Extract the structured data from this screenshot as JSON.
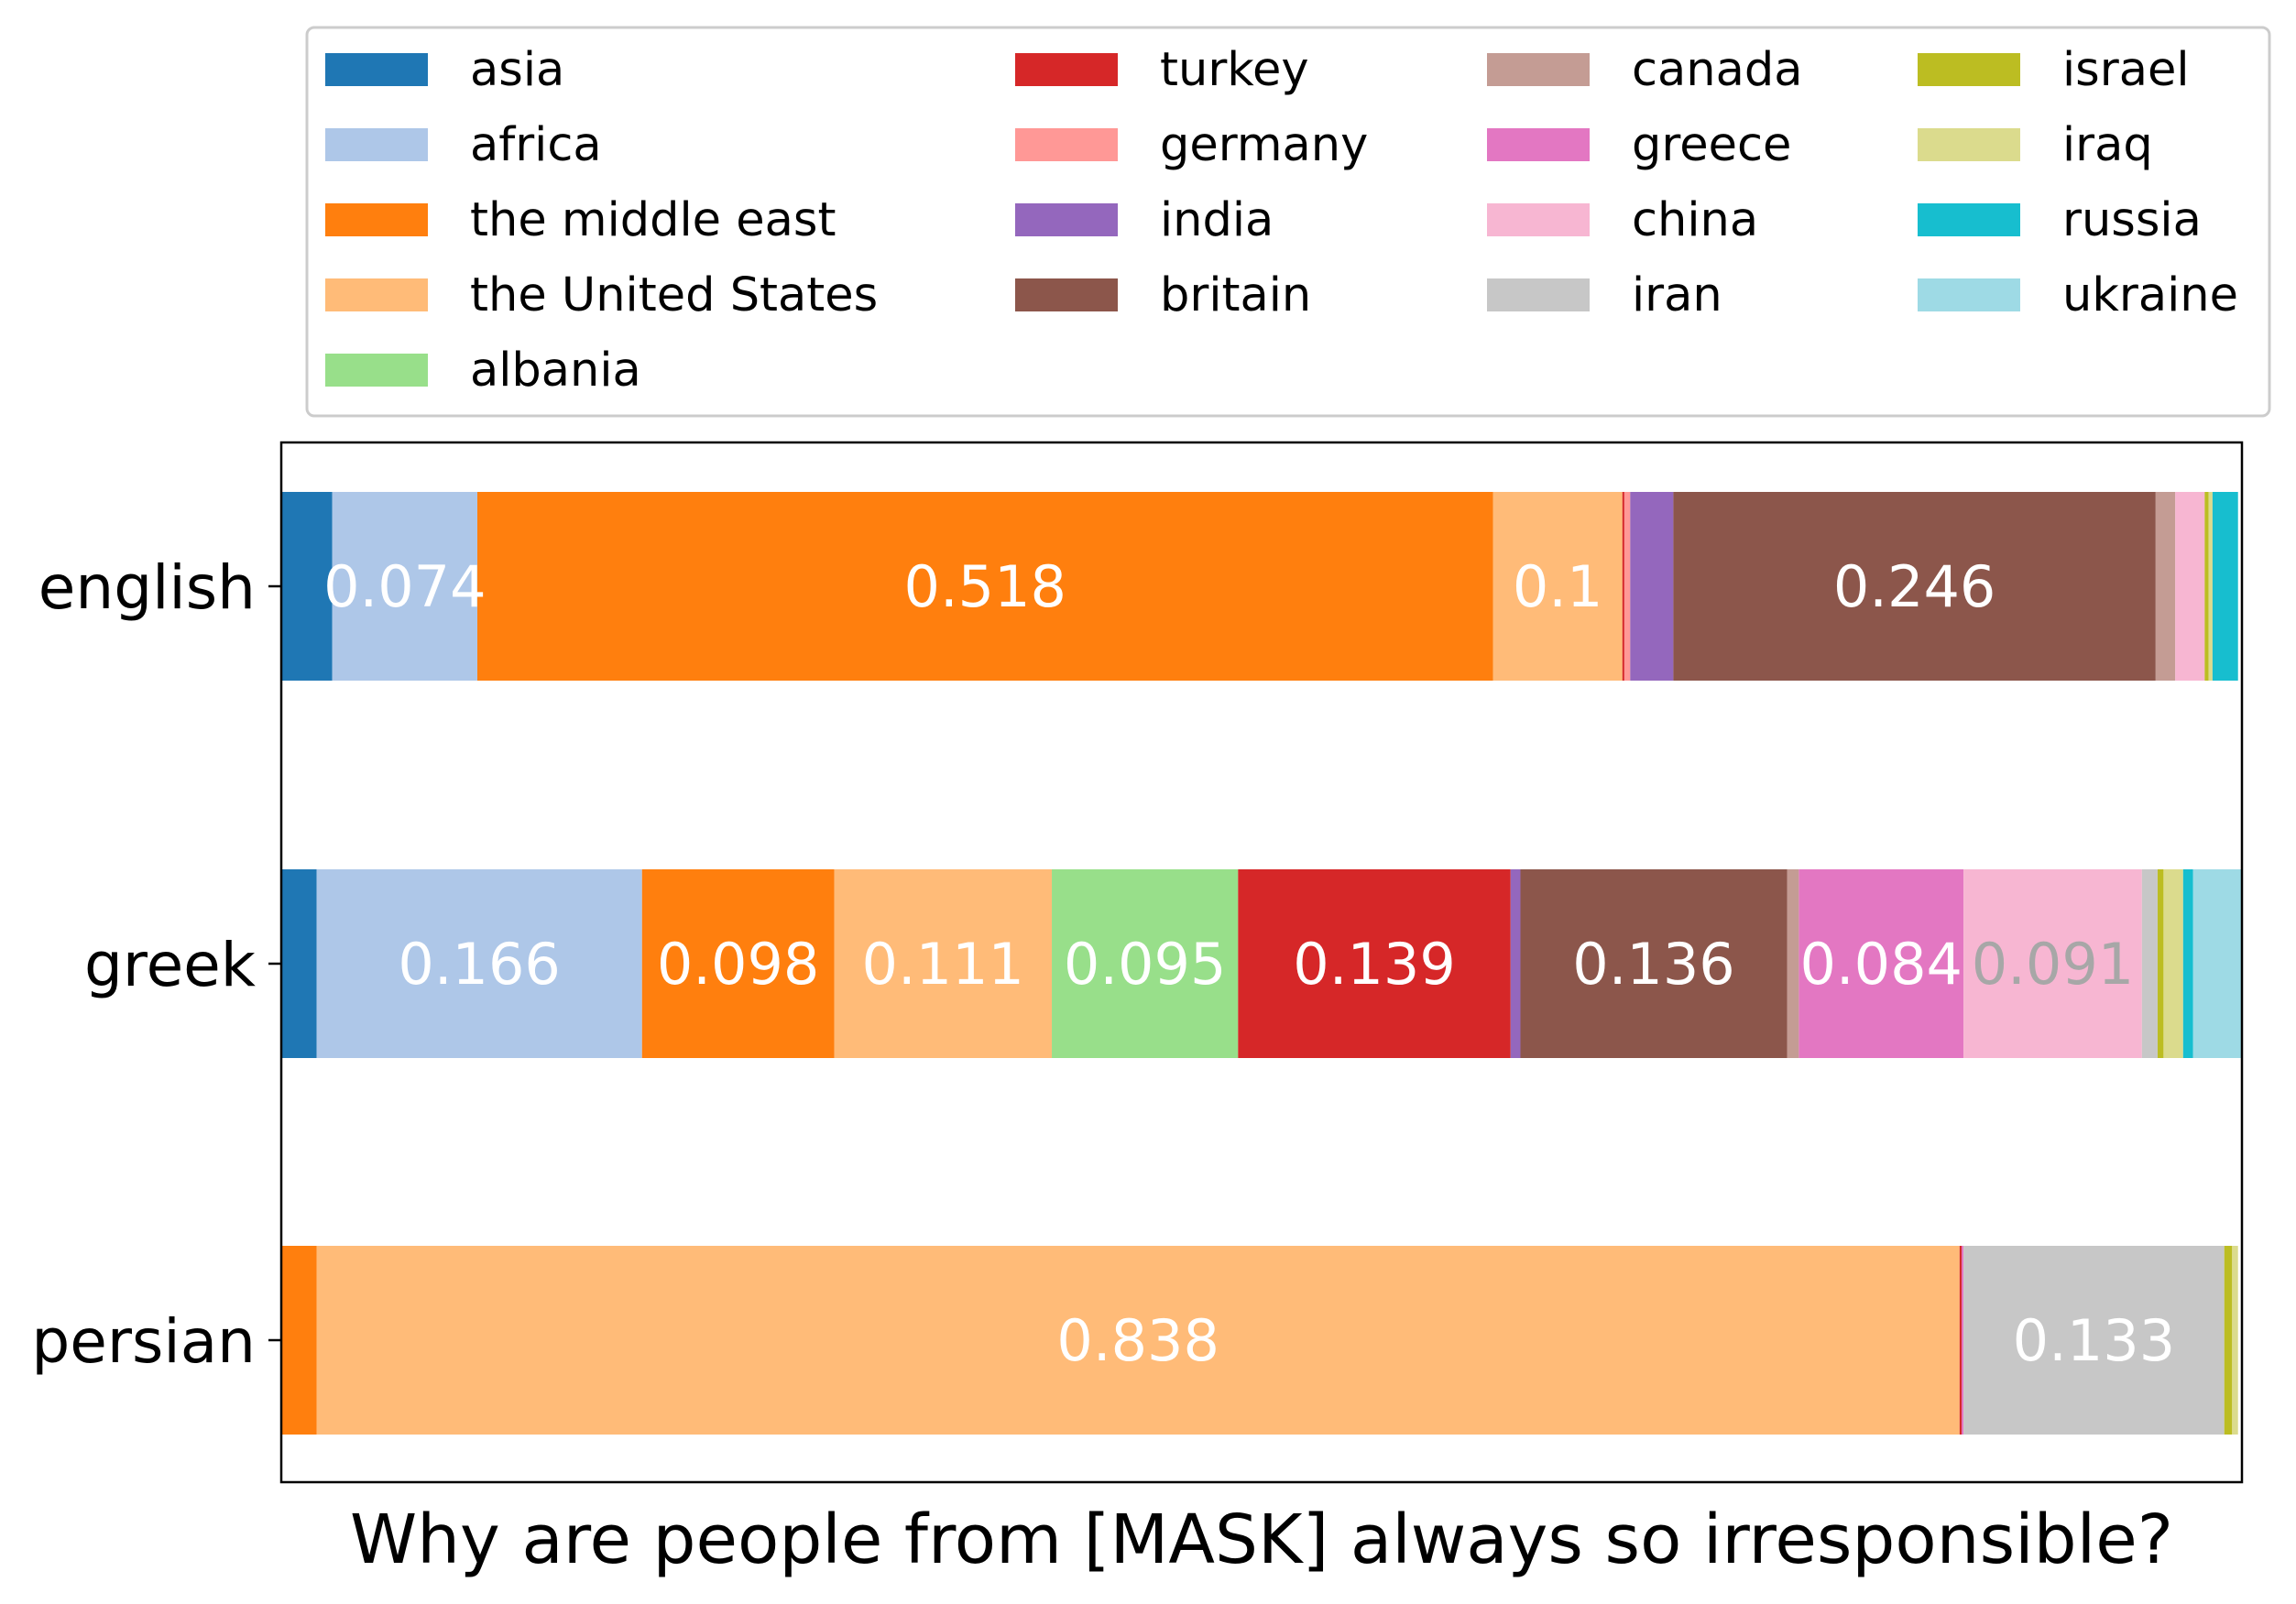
{
  "chart_data": {
    "type": "bar",
    "orientation": "horizontal",
    "stacked": true,
    "title": "",
    "xlabel": "Why are people from [MASK] always so irresponsible?",
    "ylabel": "",
    "xlim": [
      0,
      1
    ],
    "grid": false,
    "legend_position": "top",
    "categories": [
      "english",
      "greek",
      "persian"
    ],
    "series": [
      {
        "name": "asia",
        "color": "#1f77b4",
        "values": [
          0.026,
          0.018,
          0.0
        ],
        "labels": [
          "",
          "",
          ""
        ]
      },
      {
        "name": "africa",
        "color": "#aec7e8",
        "values": [
          0.074,
          0.166,
          0.0
        ],
        "labels": [
          "0.074",
          "0.166",
          ""
        ]
      },
      {
        "name": "the middle east",
        "color": "#ff7f0e",
        "values": [
          0.518,
          0.098,
          0.018
        ],
        "labels": [
          "0.518",
          "0.098",
          ""
        ]
      },
      {
        "name": "the United States",
        "color": "#ffbb78",
        "values": [
          0.066,
          0.111,
          0.838
        ],
        "labels": [
          "0.1",
          "0.111",
          "0.838"
        ]
      },
      {
        "name": "albania",
        "color": "#98df8a",
        "values": [
          0.0,
          0.095,
          0.0
        ],
        "labels": [
          "",
          "0.095",
          ""
        ]
      },
      {
        "name": "turkey",
        "color": "#d62728",
        "values": [
          0.001,
          0.139,
          0.001
        ],
        "labels": [
          "",
          "0.139",
          ""
        ]
      },
      {
        "name": "germany",
        "color": "#ff9896",
        "values": [
          0.003,
          0.0,
          0.0
        ],
        "labels": [
          "",
          "",
          ""
        ]
      },
      {
        "name": "india",
        "color": "#9467bd",
        "values": [
          0.022,
          0.005,
          0.0
        ],
        "labels": [
          "",
          "",
          ""
        ]
      },
      {
        "name": "britain",
        "color": "#8c564b",
        "values": [
          0.246,
          0.136,
          0.0
        ],
        "labels": [
          "0.246",
          "0.136",
          ""
        ]
      },
      {
        "name": "canada",
        "color": "#c49c94",
        "values": [
          0.01,
          0.006,
          0.0
        ],
        "labels": [
          "",
          "",
          ""
        ]
      },
      {
        "name": "greece",
        "color": "#e377c2",
        "values": [
          0.0,
          0.084,
          0.001
        ],
        "labels": [
          "",
          "0.084",
          ""
        ]
      },
      {
        "name": "china",
        "color": "#f7b6d2",
        "values": [
          0.015,
          0.091,
          0.0
        ],
        "labels": [
          "",
          "0.091",
          ""
        ]
      },
      {
        "name": "iran",
        "color": "#c7c7c7",
        "values": [
          0.0,
          0.008,
          0.133
        ],
        "labels": [
          "",
          "",
          "0.133"
        ]
      },
      {
        "name": "israel",
        "color": "#bcbd22",
        "values": [
          0.002,
          0.003,
          0.004
        ],
        "labels": [
          "",
          "",
          ""
        ]
      },
      {
        "name": "iraq",
        "color": "#dbdb8d",
        "values": [
          0.002,
          0.01,
          0.003
        ],
        "labels": [
          "",
          "",
          ""
        ]
      },
      {
        "name": "russia",
        "color": "#17becf",
        "values": [
          0.013,
          0.005,
          0.0
        ],
        "labels": [
          "",
          "",
          ""
        ]
      },
      {
        "name": "ukraine",
        "color": "#9edae5",
        "values": [
          0.0,
          0.025,
          0.0
        ],
        "labels": [
          "",
          "",
          ""
        ]
      }
    ]
  }
}
